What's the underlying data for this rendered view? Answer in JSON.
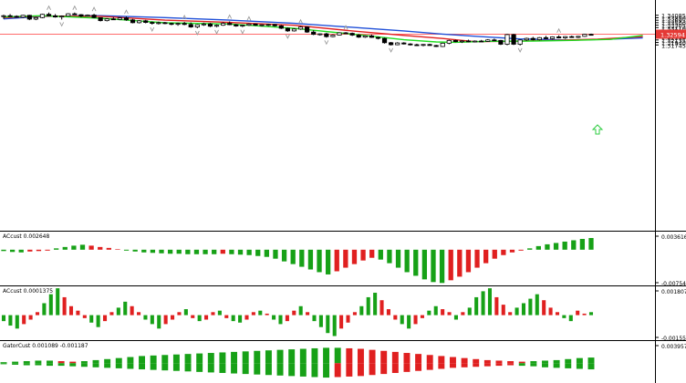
{
  "chart_data": [
    {
      "type": "candlestick",
      "panel": "price",
      "ylim": [
        1.173,
        1.3493
      ],
      "yticks": [
        "1.34085",
        "1.33890",
        "1.33695",
        "1.33500",
        "1.33305",
        "1.33110",
        "1.32915",
        "1.32720",
        "1.32525",
        "1.32330",
        "1.32135",
        "1.31940",
        "1.31745"
      ],
      "current_price": "1.32594",
      "current_price_value": 1.32594,
      "colors": {
        "bull_body": "#ffffff",
        "bear_body": "#000000",
        "outline": "#000000",
        "price_line": "#ff6b6b",
        "price_label_bg": "#e53935",
        "up_arrow": "#2ecc40",
        "fractal": "#9a9a9a"
      },
      "candles": [
        [
          1.3398,
          1.3413,
          1.338,
          1.3405
        ],
        [
          1.3405,
          1.3418,
          1.3395,
          1.34
        ],
        [
          1.34,
          1.3408,
          1.3388,
          1.3393
        ],
        [
          1.3393,
          1.3412,
          1.3385,
          1.3408
        ],
        [
          1.3408,
          1.3412,
          1.337,
          1.3378
        ],
        [
          1.3378,
          1.3396,
          1.337,
          1.339
        ],
        [
          1.339,
          1.342,
          1.3385,
          1.3416
        ],
        [
          1.3416,
          1.343,
          1.34,
          1.3404
        ],
        [
          1.3404,
          1.3418,
          1.339,
          1.3395
        ],
        [
          1.3395,
          1.3407,
          1.3375,
          1.3402
        ],
        [
          1.3402,
          1.3425,
          1.3398,
          1.342
        ],
        [
          1.342,
          1.343,
          1.341,
          1.3413
        ],
        [
          1.3413,
          1.3418,
          1.3392,
          1.3402
        ],
        [
          1.3402,
          1.3415,
          1.3398,
          1.341
        ],
        [
          1.341,
          1.342,
          1.3386,
          1.339
        ],
        [
          1.339,
          1.3392,
          1.336,
          1.3366
        ],
        [
          1.3366,
          1.3386,
          1.336,
          1.338
        ],
        [
          1.338,
          1.3394,
          1.3372,
          1.3376
        ],
        [
          1.3376,
          1.3392,
          1.337,
          1.3388
        ],
        [
          1.3388,
          1.3398,
          1.3365,
          1.3372
        ],
        [
          1.3372,
          1.338,
          1.3345,
          1.335
        ],
        [
          1.335,
          1.337,
          1.3344,
          1.3365
        ],
        [
          1.3365,
          1.3372,
          1.3345,
          1.3352
        ],
        [
          1.3352,
          1.336,
          1.3335,
          1.3345
        ],
        [
          1.3345,
          1.3358,
          1.3336,
          1.335
        ],
        [
          1.335,
          1.3356,
          1.3338,
          1.3344
        ],
        [
          1.3344,
          1.335,
          1.333,
          1.334
        ],
        [
          1.334,
          1.335,
          1.3326,
          1.3344
        ],
        [
          1.3344,
          1.3356,
          1.333,
          1.3336
        ],
        [
          1.3336,
          1.3352,
          1.331,
          1.3316
        ],
        [
          1.3316,
          1.3338,
          1.3306,
          1.3334
        ],
        [
          1.3334,
          1.335,
          1.3325,
          1.334
        ],
        [
          1.334,
          1.3348,
          1.3315,
          1.3322
        ],
        [
          1.3322,
          1.3336,
          1.3314,
          1.333
        ],
        [
          1.333,
          1.3354,
          1.3325,
          1.3345
        ],
        [
          1.3345,
          1.336,
          1.333,
          1.3334
        ],
        [
          1.3334,
          1.334,
          1.3318,
          1.3324
        ],
        [
          1.3324,
          1.3334,
          1.3315,
          1.333
        ],
        [
          1.333,
          1.3346,
          1.3324,
          1.334
        ],
        [
          1.334,
          1.3344,
          1.3325,
          1.333
        ],
        [
          1.333,
          1.3338,
          1.332,
          1.3334
        ],
        [
          1.3334,
          1.3342,
          1.3322,
          1.3336
        ],
        [
          1.3336,
          1.334,
          1.3318,
          1.3325
        ],
        [
          1.3325,
          1.3332,
          1.33,
          1.3306
        ],
        [
          1.3306,
          1.3312,
          1.3278,
          1.3285
        ],
        [
          1.3285,
          1.3306,
          1.328,
          1.33
        ],
        [
          1.33,
          1.3322,
          1.3294,
          1.3316
        ],
        [
          1.3316,
          1.332,
          1.327,
          1.3276
        ],
        [
          1.3276,
          1.329,
          1.3252,
          1.3258
        ],
        [
          1.3258,
          1.3266,
          1.3248,
          1.3262
        ],
        [
          1.3262,
          1.327,
          1.3232,
          1.324
        ],
        [
          1.324,
          1.3258,
          1.3235,
          1.3252
        ],
        [
          1.3252,
          1.3274,
          1.3248,
          1.327
        ],
        [
          1.327,
          1.3276,
          1.3262,
          1.3266
        ],
        [
          1.3266,
          1.3272,
          1.3245,
          1.3252
        ],
        [
          1.3252,
          1.326,
          1.323,
          1.3236
        ],
        [
          1.3236,
          1.325,
          1.323,
          1.3246
        ],
        [
          1.3246,
          1.3256,
          1.323,
          1.3234
        ],
        [
          1.3234,
          1.324,
          1.3218,
          1.3226
        ],
        [
          1.3226,
          1.3232,
          1.3185,
          1.3192
        ],
        [
          1.3192,
          1.3198,
          1.317,
          1.3176
        ],
        [
          1.3176,
          1.3196,
          1.3172,
          1.319
        ],
        [
          1.319,
          1.3196,
          1.3178,
          1.3182
        ],
        [
          1.3182,
          1.3188,
          1.317,
          1.3176
        ],
        [
          1.3176,
          1.3184,
          1.3166,
          1.3172
        ],
        [
          1.3172,
          1.3182,
          1.3164,
          1.3178
        ],
        [
          1.3178,
          1.3184,
          1.3168,
          1.317
        ],
        [
          1.317,
          1.3175,
          1.3158,
          1.3162
        ],
        [
          1.3162,
          1.3192,
          1.3158,
          1.3188
        ],
        [
          1.3188,
          1.3215,
          1.318,
          1.321
        ],
        [
          1.321,
          1.3216,
          1.3196,
          1.32
        ],
        [
          1.32,
          1.3212,
          1.319,
          1.3206
        ],
        [
          1.3206,
          1.3216,
          1.3196,
          1.32
        ],
        [
          1.32,
          1.321,
          1.3194,
          1.3205
        ],
        [
          1.3205,
          1.3214,
          1.3198,
          1.3202
        ],
        [
          1.3202,
          1.322,
          1.3198,
          1.3214
        ],
        [
          1.3214,
          1.3224,
          1.3205,
          1.321
        ],
        [
          1.321,
          1.3214,
          1.3174,
          1.318
        ],
        [
          1.318,
          1.3262,
          1.3172,
          1.3256
        ],
        [
          1.3256,
          1.3262,
          1.3174,
          1.318
        ],
        [
          1.318,
          1.3218,
          1.317,
          1.3214
        ],
        [
          1.3214,
          1.3232,
          1.3206,
          1.3226
        ],
        [
          1.3226,
          1.3238,
          1.321,
          1.3216
        ],
        [
          1.3216,
          1.3236,
          1.321,
          1.3232
        ],
        [
          1.3232,
          1.3246,
          1.322,
          1.3224
        ],
        [
          1.3224,
          1.3242,
          1.3218,
          1.3238
        ],
        [
          1.3238,
          1.325,
          1.3226,
          1.323
        ],
        [
          1.323,
          1.3244,
          1.3222,
          1.324
        ],
        [
          1.324,
          1.3248,
          1.323,
          1.3234
        ],
        [
          1.3234,
          1.3246,
          1.3228,
          1.3242
        ],
        [
          1.3242,
          1.3262,
          1.3238,
          1.3258
        ],
        [
          1.3258,
          1.3264,
          1.325,
          1.3256
        ]
      ],
      "moving_averages": [
        {
          "color": "#1f4fd8",
          "values": [
            [
              0,
              1.338
            ],
            [
              6,
              1.34
            ],
            [
              15,
              1.3405
            ],
            [
              25,
              1.339
            ],
            [
              35,
              1.337
            ],
            [
              45,
              1.3345
            ],
            [
              55,
              1.331
            ],
            [
              62,
              1.3285
            ],
            [
              68,
              1.326
            ],
            [
              74,
              1.324
            ],
            [
              80,
              1.3222
            ],
            [
              88,
              1.3212
            ],
            [
              94,
              1.322
            ],
            [
              99,
              1.323
            ]
          ]
        },
        {
          "color": "#e02020",
          "values": [
            [
              0,
              1.339
            ],
            [
              6,
              1.3402
            ],
            [
              15,
              1.34
            ],
            [
              25,
              1.337
            ],
            [
              35,
              1.3352
            ],
            [
              45,
              1.333
            ],
            [
              55,
              1.328
            ],
            [
              62,
              1.325
            ],
            [
              68,
              1.3225
            ],
            [
              73,
              1.32
            ],
            [
              78,
              1.3203
            ],
            [
              85,
              1.321
            ],
            [
              92,
              1.322
            ],
            [
              99,
              1.324
            ]
          ]
        },
        {
          "color": "#22dd22",
          "values": [
            [
              0,
              1.3395
            ],
            [
              6,
              1.3405
            ],
            [
              15,
              1.3385
            ],
            [
              25,
              1.335
            ],
            [
              35,
              1.334
            ],
            [
              45,
              1.3305
            ],
            [
              55,
              1.3255
            ],
            [
              62,
              1.3215
            ],
            [
              67,
              1.3198
            ],
            [
              70,
              1.3195
            ],
            [
              75,
              1.3203
            ],
            [
              82,
              1.3205
            ],
            [
              88,
              1.321
            ],
            [
              94,
              1.3218
            ],
            [
              99,
              1.325
            ]
          ]
        }
      ]
    },
    {
      "type": "histogram",
      "panel": "ACcust",
      "label": "ACcust 0.002648",
      "yticks": [
        "0.003616",
        "-0.007540"
      ],
      "ylim": [
        -0.00754,
        0.003616
      ],
      "colors": {
        "up": "#17a117",
        "down": "#e02020"
      },
      "values": [
        -0.0003,
        -0.0005,
        -0.0006,
        -0.0004,
        -0.0003,
        -0.0002,
        0.0003,
        0.0006,
        0.0009,
        0.0011,
        0.0009,
        0.0006,
        0.0004,
        0.0001,
        -0.0002,
        -0.0004,
        -0.0006,
        -0.0007,
        -0.0008,
        -0.0009,
        -0.0009,
        -0.001,
        -0.001,
        -0.001,
        -0.001,
        -0.0009,
        -0.001,
        -0.0011,
        -0.0012,
        -0.0014,
        -0.0016,
        -0.002,
        -0.0026,
        -0.0032,
        -0.0038,
        -0.0044,
        -0.005,
        -0.0055,
        -0.0048,
        -0.004,
        -0.0032,
        -0.0024,
        -0.0018,
        -0.0022,
        -0.003,
        -0.004,
        -0.005,
        -0.0058,
        -0.0066,
        -0.0072,
        -0.0074,
        -0.0068,
        -0.006,
        -0.005,
        -0.004,
        -0.003,
        -0.002,
        -0.0012,
        -0.0006,
        -0.0002,
        0.0003,
        0.0008,
        0.0012,
        0.0015,
        0.0018,
        0.0021,
        0.0024,
        0.0026
      ]
    },
    {
      "type": "histogram",
      "panel": "ACcust",
      "label": "ACcust 0.0001375",
      "yticks": [
        "0.0018070",
        "-0.0015526"
      ],
      "ylim": [
        -0.0015526,
        0.001807
      ],
      "colors": {
        "up": "#17a117",
        "down": "#e02020"
      },
      "values": [
        -0.0004,
        -0.0007,
        -0.0009,
        -0.0006,
        -0.0003,
        0.0002,
        0.0008,
        0.0014,
        0.0018,
        0.0012,
        0.0006,
        0.0003,
        -0.0002,
        -0.0005,
        -0.0008,
        -0.0004,
        0.0002,
        0.0005,
        0.0009,
        0.0006,
        0.0002,
        -0.0003,
        -0.0006,
        -0.0009,
        -0.0006,
        -0.0003,
        0.0002,
        0.0004,
        -0.0002,
        -0.0004,
        -0.0003,
        0.0002,
        0.0003,
        -0.0002,
        -0.0004,
        -0.0005,
        -0.0003,
        0.0002,
        0.0003,
        0.0001,
        -0.0003,
        -0.0006,
        -0.0004,
        0.0003,
        0.0006,
        0.0002,
        -0.0004,
        -0.0008,
        -0.0012,
        -0.0014,
        -0.0009,
        -0.0005,
        0.0002,
        0.0006,
        0.0012,
        0.0015,
        0.001,
        0.0004,
        -0.0003,
        -0.0006,
        -0.0009,
        -0.0006,
        -0.0002,
        0.0003,
        0.0006,
        0.0004,
        0.0002,
        -0.0003,
        0.0002,
        0.0005,
        0.0012,
        0.0016,
        0.0018,
        0.0012,
        0.0007,
        0.0002,
        0.0005,
        0.0008,
        0.0011,
        0.0014,
        0.001,
        0.0005,
        0.0002,
        -0.0002,
        -0.0004,
        0.0003,
        0.0001,
        0.0002
      ]
    },
    {
      "type": "histogram",
      "panel": "GatorCust",
      "label": "GatorCust 0.001089 -0.001187",
      "yticks": [
        "0.003957"
      ],
      "ylim": [
        -0.0035,
        0.003957
      ],
      "colors": {
        "up": "#17a117",
        "down": "#e02020"
      },
      "upper": [
        0.0002,
        0.0003,
        0.0004,
        0.0005,
        0.0005,
        0.0004,
        0.0003,
        0.0004,
        0.0006,
        0.0008,
        0.001,
        0.0012,
        0.0014,
        0.0015,
        0.0016,
        0.0017,
        0.0018,
        0.0019,
        0.002,
        0.0021,
        0.0022,
        0.0023,
        0.0024,
        0.0025,
        0.0026,
        0.0027,
        0.0028,
        0.0029,
        0.003,
        0.003,
        0.0029,
        0.0028,
        0.0026,
        0.0024,
        0.0022,
        0.002,
        0.0018,
        0.0016,
        0.0014,
        0.0012,
        0.001,
        0.0008,
        0.0006,
        0.0005,
        0.0004,
        0.0003,
        0.0004,
        0.0005,
        0.0006,
        0.0008,
        0.001,
        0.0011
      ],
      "lower": [
        -0.0002,
        -0.0003,
        -0.0004,
        -0.0004,
        -0.0005,
        -0.0005,
        -0.0006,
        -0.0007,
        -0.0008,
        -0.0009,
        -0.001,
        -0.0011,
        -0.0012,
        -0.0013,
        -0.0014,
        -0.0015,
        -0.0016,
        -0.0017,
        -0.0018,
        -0.0019,
        -0.002,
        -0.0021,
        -0.0022,
        -0.0023,
        -0.0024,
        -0.0025,
        -0.0026,
        -0.0027,
        -0.0028,
        -0.0027,
        -0.0026,
        -0.0025,
        -0.0023,
        -0.0021,
        -0.0019,
        -0.0017,
        -0.0015,
        -0.0013,
        -0.0011,
        -0.0009,
        -0.0008,
        -0.0007,
        -0.0006,
        -0.0005,
        -0.0004,
        -0.0005,
        -0.0006,
        -0.0008,
        -0.0009,
        -0.001,
        -0.0011,
        -0.0012
      ]
    }
  ]
}
